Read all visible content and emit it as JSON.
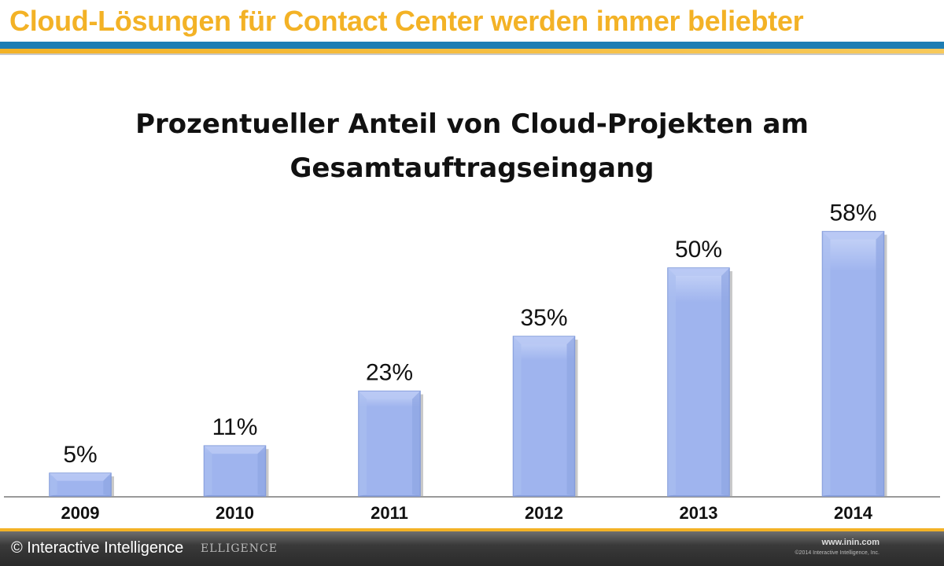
{
  "header": {
    "title": "Cloud-Lösungen für Contact Center werden immer beliebter"
  },
  "chart_data": {
    "type": "bar",
    "title_lines": [
      "Prozentueller Anteil von Cloud-Projekten am",
      "Gesamtauftragseingang"
    ],
    "categories": [
      "2009",
      "2010",
      "2011",
      "2012",
      "2013",
      "2014"
    ],
    "values": [
      5,
      11,
      23,
      35,
      50,
      58
    ],
    "value_labels": [
      "5%",
      "11%",
      "23%",
      "35%",
      "50%",
      "58%"
    ],
    "ylim": [
      0,
      60
    ],
    "grid": false,
    "legend": "none",
    "colors": {
      "bar": "#9fb4ee",
      "bar_edge": "#7f98d8",
      "bar_highlight": "#c9d6f8"
    }
  },
  "footer": {
    "copyright": "© Interactive Intelligence",
    "brand_ghost": "ELLIGENCE",
    "site": "www.inin.com",
    "small_copyright": "©2014 Interactive Intelligence, Inc."
  }
}
